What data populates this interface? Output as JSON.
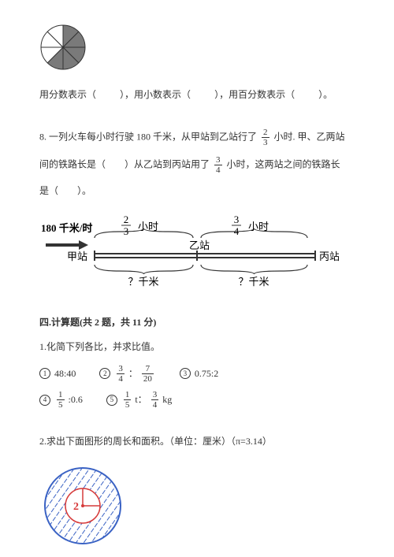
{
  "pie": {
    "outer_radius": 28,
    "shaded_slices": [
      0,
      1,
      2,
      3,
      4
    ],
    "total_slices": 8,
    "shaded_color": "#7a7a7a",
    "stroke": "#333333"
  },
  "q7": {
    "text_a": "用分数表示（",
    "text_b": "），用小数表示（",
    "text_c": "），用百分数表示（",
    "text_d": "）。"
  },
  "q8": {
    "prefix": "8.",
    "part1a": "一列火车每小时行驶 180 千米，从甲站到乙站行了",
    "frac1_num": "2",
    "frac1_den": "3",
    "part1b": "小时. 甲、乙两站",
    "part2a": "间的铁路长是（　　）从乙站到丙站用了",
    "frac2_num": "3",
    "frac2_den": "4",
    "part2b": "小时，这两站之间的铁路长",
    "part3": "是（　　）。"
  },
  "diagram": {
    "speed": "180 千米/时",
    "t1_num": "2",
    "t1_den": "3",
    "t1_unit": "小时",
    "t2_num": "3",
    "t2_den": "4",
    "t2_unit": "小时",
    "stationA": "甲站",
    "stationB": "乙站",
    "stationC": "丙站",
    "unknown": "？千米",
    "line_color": "#333333"
  },
  "section4": {
    "heading": "四.计算题(共 2 题，共 11 分)",
    "q1_label": "1.化简下列各比，并求比值。",
    "items": {
      "i1": "48:40",
      "i2_a_num": "3",
      "i2_a_den": "4",
      "i2_colon": "：",
      "i2_b_num": "7",
      "i2_b_den": "20",
      "i3": "0.75:2",
      "i4_a_num": "1",
      "i4_a_den": "5",
      "i4_b": ":0.6",
      "i5_a_num": "1",
      "i5_a_den": "5",
      "i5_mid": " t：",
      "i5_b_num": "3",
      "i5_b_den": "4",
      "i5_tail": " kg"
    },
    "q2_label": "2.求出下面图形的周长和面积。（单位：厘米）（π=3.14）"
  },
  "geo": {
    "outer_r": 48,
    "inner_r": 22,
    "outer_stroke": "#3a62c4",
    "inner_stroke": "#d63a3a",
    "hatch_color": "#3a62c4",
    "radius_label": "2",
    "label_color": "#d63a3a"
  }
}
